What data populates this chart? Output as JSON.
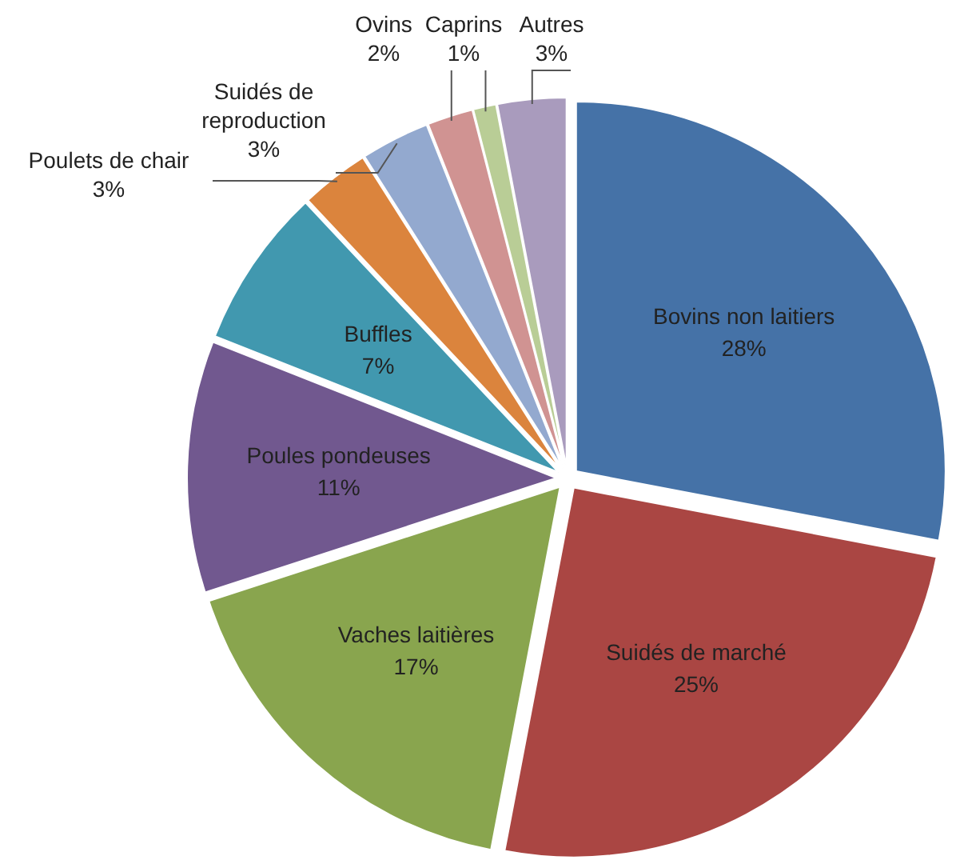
{
  "chart_data": {
    "type": "pie",
    "categories": [
      "Bovins non laitiers",
      "Suidés de marché",
      "Vaches laitières",
      "Poules pondeuses",
      "Buffles",
      "Poulets de chair",
      "Suidés de reproduction",
      "Ovins",
      "Caprins",
      "Autres"
    ],
    "values": [
      28,
      25,
      17,
      11,
      7,
      3,
      3,
      2,
      1,
      3
    ],
    "colors": [
      "#4572a7",
      "#aa4643",
      "#89a54e",
      "#71588f",
      "#4198af",
      "#db843d",
      "#93a9cf",
      "#d09392",
      "#b9cd96",
      "#a99bbd"
    ],
    "value_labels": [
      "28%",
      "25%",
      "17%",
      "11%",
      "7%",
      "3%",
      "3%",
      "2%",
      "1%",
      "3%"
    ],
    "legend": false
  }
}
